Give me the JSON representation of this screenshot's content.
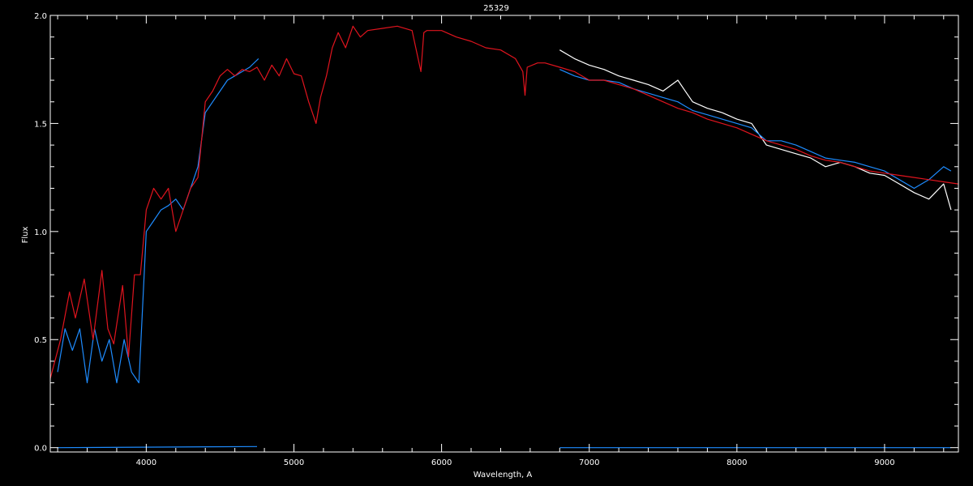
{
  "chart_data": {
    "type": "line",
    "title": "25329",
    "xlabel": "Wavelength, A",
    "ylabel": "Flux",
    "xlim": [
      3350,
      9500
    ],
    "ylim": [
      -0.02,
      2.0
    ],
    "xticks": [
      4000,
      5000,
      6000,
      7000,
      8000,
      9000
    ],
    "yticks": [
      0.0,
      0.5,
      1.0,
      1.5,
      2.0
    ],
    "xtick_labels": [
      "4000",
      "5000",
      "6000",
      "7000",
      "8000",
      "9000"
    ],
    "ytick_labels": [
      "0.0",
      "0.5",
      "1.0",
      "1.5",
      "2.0"
    ],
    "grid": false,
    "colors": {
      "background": "#000000",
      "axes": "#ffffff",
      "model": "#e0141e",
      "blue": "#1e8cff",
      "white": "#ffffff"
    },
    "series": [
      {
        "color": "#e0141e",
        "x": [
          3350,
          3420,
          3480,
          3520,
          3580,
          3640,
          3700,
          3740,
          3780,
          3840,
          3880,
          3920,
          3960,
          4000,
          4050,
          4100,
          4150,
          4200,
          4250,
          4300,
          4350,
          4400,
          4450,
          4500,
          4550,
          4600,
          4650,
          4700,
          4750,
          4800,
          4850,
          4900,
          4950,
          5000,
          5050,
          5100,
          5150,
          5180,
          5220,
          5260,
          5300,
          5350,
          5400,
          5450,
          5500,
          5600,
          5700,
          5800,
          5860,
          5880,
          5900,
          5950,
          6000,
          6100,
          6200,
          6300,
          6400,
          6500,
          6550,
          6565,
          6580,
          6650,
          6700,
          6800,
          6900,
          7000,
          7100,
          7200,
          7300,
          7400,
          7500,
          7600,
          7700,
          7800,
          7900,
          8000,
          8100,
          8200,
          8300,
          8400,
          8500,
          8600,
          8700,
          8800,
          8900,
          9000,
          9100,
          9200,
          9300,
          9400,
          9500
        ],
        "y": [
          0.32,
          0.5,
          0.72,
          0.6,
          0.78,
          0.5,
          0.82,
          0.55,
          0.48,
          0.75,
          0.42,
          0.8,
          0.8,
          1.1,
          1.2,
          1.15,
          1.2,
          1.0,
          1.1,
          1.2,
          1.25,
          1.6,
          1.65,
          1.72,
          1.75,
          1.72,
          1.75,
          1.74,
          1.76,
          1.7,
          1.77,
          1.72,
          1.8,
          1.73,
          1.72,
          1.6,
          1.5,
          1.62,
          1.72,
          1.85,
          1.92,
          1.85,
          1.95,
          1.9,
          1.93,
          1.94,
          1.95,
          1.93,
          1.74,
          1.92,
          1.93,
          1.93,
          1.93,
          1.9,
          1.88,
          1.85,
          1.84,
          1.8,
          1.74,
          1.63,
          1.76,
          1.78,
          1.78,
          1.76,
          1.74,
          1.7,
          1.7,
          1.68,
          1.66,
          1.63,
          1.6,
          1.57,
          1.55,
          1.52,
          1.5,
          1.48,
          1.45,
          1.42,
          1.4,
          1.38,
          1.35,
          1.33,
          1.32,
          1.3,
          1.28,
          1.27,
          1.26,
          1.25,
          1.24,
          1.23,
          1.22
        ]
      },
      {
        "color": "#1e8cff",
        "x": [
          3400,
          3450,
          3500,
          3550,
          3600,
          3650,
          3700,
          3750,
          3800,
          3850,
          3900,
          3950,
          4000,
          4050,
          4100,
          4150,
          4200,
          4250,
          4300,
          4350,
          4400,
          4450,
          4500,
          4550,
          4600,
          4650,
          4700,
          4760
        ],
        "y": [
          0.35,
          0.55,
          0.45,
          0.55,
          0.3,
          0.55,
          0.4,
          0.5,
          0.3,
          0.5,
          0.35,
          0.3,
          1.0,
          1.05,
          1.1,
          1.12,
          1.15,
          1.1,
          1.2,
          1.3,
          1.55,
          1.6,
          1.65,
          1.7,
          1.72,
          1.74,
          1.76,
          1.8
        ]
      },
      {
        "color": "#1e8cff",
        "x": [
          6800,
          6900,
          7000,
          7100,
          7200,
          7300,
          7400,
          7500,
          7600,
          7650,
          7700,
          7800,
          7900,
          8000,
          8100,
          8150,
          8200,
          8300,
          8400,
          8500,
          8600,
          8700,
          8800,
          8900,
          9000,
          9100,
          9200,
          9300,
          9400,
          9450
        ],
        "y": [
          1.75,
          1.72,
          1.7,
          1.7,
          1.69,
          1.66,
          1.64,
          1.62,
          1.6,
          1.58,
          1.56,
          1.54,
          1.52,
          1.5,
          1.48,
          1.45,
          1.42,
          1.42,
          1.4,
          1.37,
          1.34,
          1.33,
          1.32,
          1.3,
          1.28,
          1.24,
          1.2,
          1.24,
          1.3,
          1.28
        ]
      },
      {
        "color": "#ffffff",
        "x": [
          6800,
          6900,
          7000,
          7100,
          7200,
          7300,
          7400,
          7500,
          7600,
          7650,
          7700,
          7800,
          7900,
          8000,
          8100,
          8150,
          8200,
          8300,
          8400,
          8500,
          8600,
          8700,
          8800,
          8900,
          9000,
          9100,
          9200,
          9300,
          9400,
          9450
        ],
        "y": [
          1.84,
          1.8,
          1.77,
          1.75,
          1.72,
          1.7,
          1.68,
          1.65,
          1.7,
          1.65,
          1.6,
          1.57,
          1.55,
          1.52,
          1.5,
          1.45,
          1.4,
          1.38,
          1.36,
          1.34,
          1.3,
          1.32,
          1.3,
          1.27,
          1.26,
          1.22,
          1.18,
          1.15,
          1.22,
          1.1
        ]
      },
      {
        "color": "#1e8cff",
        "x": [
          3400,
          4750
        ],
        "y": [
          0.0,
          0.005
        ]
      },
      {
        "color": "#1e8cff",
        "x": [
          6800,
          9450
        ],
        "y": [
          0.0,
          0.0
        ]
      }
    ]
  }
}
